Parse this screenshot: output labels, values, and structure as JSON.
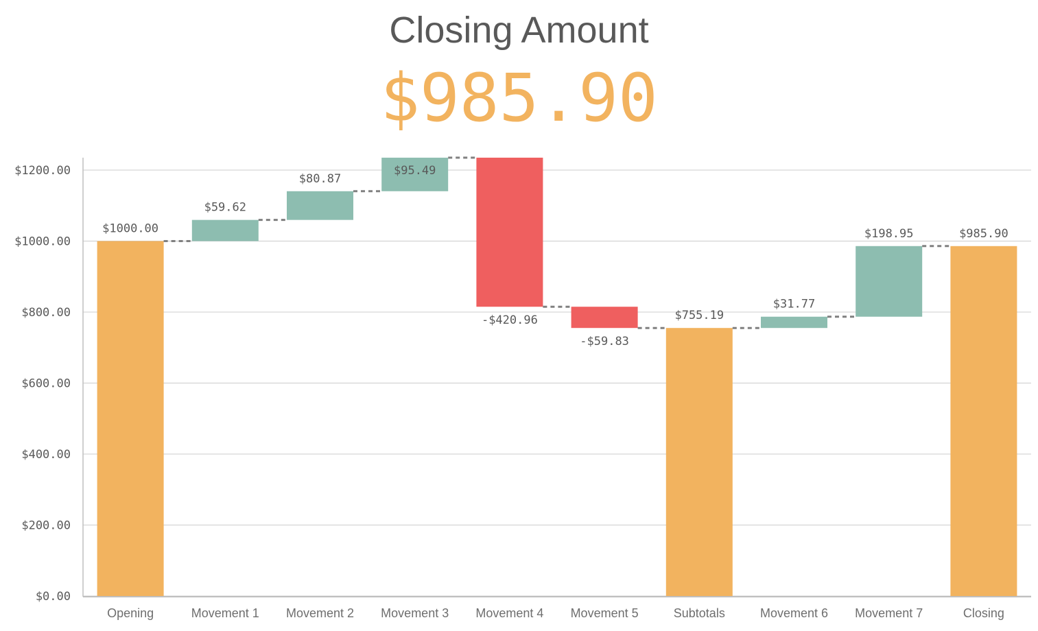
{
  "kpi": {
    "title": "Closing Amount",
    "value": "$985.90"
  },
  "colors": {
    "positive": "#8dbdb0",
    "negative": "#ef5f5f",
    "total": "#f2b35f",
    "grid": "#cccccc",
    "connector": "#808080"
  },
  "chart_data": {
    "type": "waterfall",
    "title": "",
    "xlabel": "",
    "ylabel": "",
    "ylim": [
      0,
      1200
    ],
    "y_visible_max": 1235,
    "y_ticks": [
      0,
      200,
      400,
      600,
      800,
      1000,
      1200
    ],
    "y_tick_labels": [
      "$0.00",
      "$200.00",
      "$400.00",
      "$600.00",
      "$800.00",
      "$1000.00",
      "$1200.00"
    ],
    "grid": true,
    "categories": [
      "Opening",
      "Movement 1",
      "Movement 2",
      "Movement 3",
      "Movement 4",
      "Movement 5",
      "Subtotals",
      "Movement 6",
      "Movement 7",
      "Closing"
    ],
    "bars": [
      {
        "category": "Opening",
        "kind": "total",
        "start": 0,
        "end": 1000.0,
        "label": "$1000.00"
      },
      {
        "category": "Movement 1",
        "kind": "positive",
        "start": 1000.0,
        "end": 1059.62,
        "label": "$59.62"
      },
      {
        "category": "Movement 2",
        "kind": "positive",
        "start": 1059.62,
        "end": 1140.49,
        "label": "$80.87"
      },
      {
        "category": "Movement 3",
        "kind": "positive",
        "start": 1140.49,
        "end": 1235.98,
        "label": "$95.49"
      },
      {
        "category": "Movement 4",
        "kind": "negative",
        "start": 1235.98,
        "end": 815.02,
        "label": "-$420.96"
      },
      {
        "category": "Movement 5",
        "kind": "negative",
        "start": 815.02,
        "end": 755.19,
        "label": "-$59.83"
      },
      {
        "category": "Subtotals",
        "kind": "subtotal",
        "start": 0,
        "end": 755.19,
        "label": "$755.19"
      },
      {
        "category": "Movement 6",
        "kind": "positive",
        "start": 755.19,
        "end": 786.96,
        "label": "$31.77"
      },
      {
        "category": "Movement 7",
        "kind": "positive",
        "start": 786.96,
        "end": 985.91,
        "label": "$198.95"
      },
      {
        "category": "Closing",
        "kind": "subtotal",
        "start": 0,
        "end": 985.9,
        "label": "$985.90"
      }
    ]
  }
}
